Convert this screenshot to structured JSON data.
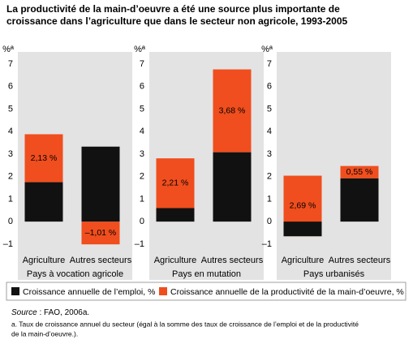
{
  "title_lines": [
    "La productivité de la main-d’oeuvre a été une source plus importante de",
    "croissance dans l’agriculture que dans le secteur non agricole, 1993-2005"
  ],
  "source": {
    "label": "Source",
    "text": " : FAO, 2006a."
  },
  "footnote_lines": [
    "a. Taux de croissance annuel du secteur (égal à la somme des taux de croissance de l’emploi et de la productivité",
    "de la main-d’oeuvre.)."
  ],
  "chart_data": [
    {
      "type": "bar",
      "stacked": true,
      "title": "Pays à vocation agricole",
      "y_label": "%ª",
      "categories": [
        "Agriculture",
        "Autres secteurs"
      ],
      "series": [
        {
          "name": "Croissance annuelle de l’emploi, %",
          "color": "#111111",
          "values": [
            1.75,
            3.33
          ]
        },
        {
          "name": "Croissance annuelle de la productivité de la main-d’oeuvre, %",
          "color": "#f04e1e",
          "values": [
            2.13,
            -1.01
          ],
          "value_labels": [
            "2,13 %",
            "–1,01 %"
          ]
        }
      ],
      "ylim": [
        -1.4,
        7.5
      ],
      "yticks": [
        {
          "value": -1,
          "label": "–1"
        },
        0,
        1,
        2,
        3,
        4,
        5,
        6,
        7
      ]
    },
    {
      "type": "bar",
      "stacked": true,
      "title": "Pays en mutation",
      "y_label": "%ª",
      "categories": [
        "Agriculture",
        "Autres secteurs"
      ],
      "series": [
        {
          "name": "Croissance annuelle de l’emploi, %",
          "color": "#111111",
          "values": [
            0.6,
            3.08
          ]
        },
        {
          "name": "Croissance annuelle de la productivité de la main-d’oeuvre, %",
          "color": "#f04e1e",
          "values": [
            2.21,
            3.68
          ],
          "value_labels": [
            "2,21 %",
            "3,68 %"
          ]
        }
      ],
      "ylim": [
        -1.4,
        7.5
      ],
      "yticks": [
        {
          "value": -1,
          "label": "–1"
        },
        0,
        1,
        2,
        3,
        4,
        5,
        6,
        7
      ]
    },
    {
      "type": "bar",
      "stacked": true,
      "title": "Pays urbanisés",
      "y_label": "%ª",
      "categories": [
        "Agriculture",
        "Autres secteurs"
      ],
      "series": [
        {
          "name": "Croissance annuelle de l’emploi, %",
          "color": "#111111",
          "values": [
            -0.65,
            1.92
          ]
        },
        {
          "name": "Croissance annuelle de la productivité de la main-d’oeuvre, %",
          "color": "#f04e1e",
          "values": [
            2.69,
            0.55
          ],
          "value_labels": [
            "2,69 %",
            "0,55 %"
          ]
        }
      ],
      "ylim": [
        -1.4,
        7.5
      ],
      "yticks": [
        {
          "value": -1,
          "label": "–1"
        },
        0,
        1,
        2,
        3,
        4,
        5,
        6,
        7
      ]
    }
  ]
}
